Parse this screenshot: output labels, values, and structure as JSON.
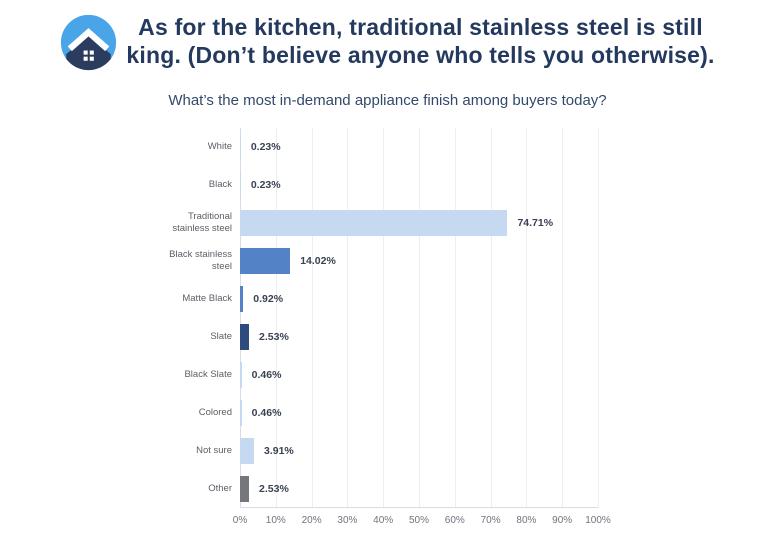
{
  "header": {
    "title_lines": [
      "As for the kitchen, traditional stainless steel is still",
      "king. (Don’t believe anyone who tells you otherwise)."
    ],
    "title_color": "#24395E",
    "logo": {
      "icon": "house-logo-icon",
      "circle_color": "#4AA5E8",
      "house_color": "#2B3C5E"
    }
  },
  "chart_data": {
    "type": "bar",
    "orientation": "horizontal",
    "title": "What’s the most in-demand appliance finish among buyers today?",
    "categories": [
      "White",
      "Black",
      "Traditional stainless steel",
      "Black stainless steel",
      "Matte Black",
      "Slate",
      "Black Slate",
      "Colored",
      "Not sure",
      "Other"
    ],
    "values": [
      0.23,
      0.23,
      74.71,
      14.02,
      0.92,
      2.53,
      0.46,
      0.46,
      3.91,
      2.53
    ],
    "value_labels": [
      "0.23%",
      "0.23%",
      "74.71%",
      "14.02%",
      "0.92%",
      "2.53%",
      "0.46%",
      "0.46%",
      "3.91%",
      "2.53%"
    ],
    "bar_colors": [
      "#C5D9F0",
      "#C5D9F0",
      "#C5D9F0",
      "#5382C6",
      "#5382C6",
      "#2E4B7D",
      "#C5D9F0",
      "#C5D9F0",
      "#C5D9F0",
      "#75777D"
    ],
    "xlabel": "",
    "ylabel": "",
    "xlim": [
      0,
      100
    ],
    "x_ticks": [
      "0%",
      "10%",
      "20%",
      "30%",
      "40%",
      "50%",
      "60%",
      "70%",
      "80%",
      "90%",
      "100%"
    ],
    "grid": true,
    "legend": false,
    "colors": {
      "gridline": "#ECEEF2",
      "axis_line": "#D9DDE3",
      "category_label": "#5B6067",
      "value_label": "#3A4252",
      "tick_label": "#6F747D"
    }
  }
}
